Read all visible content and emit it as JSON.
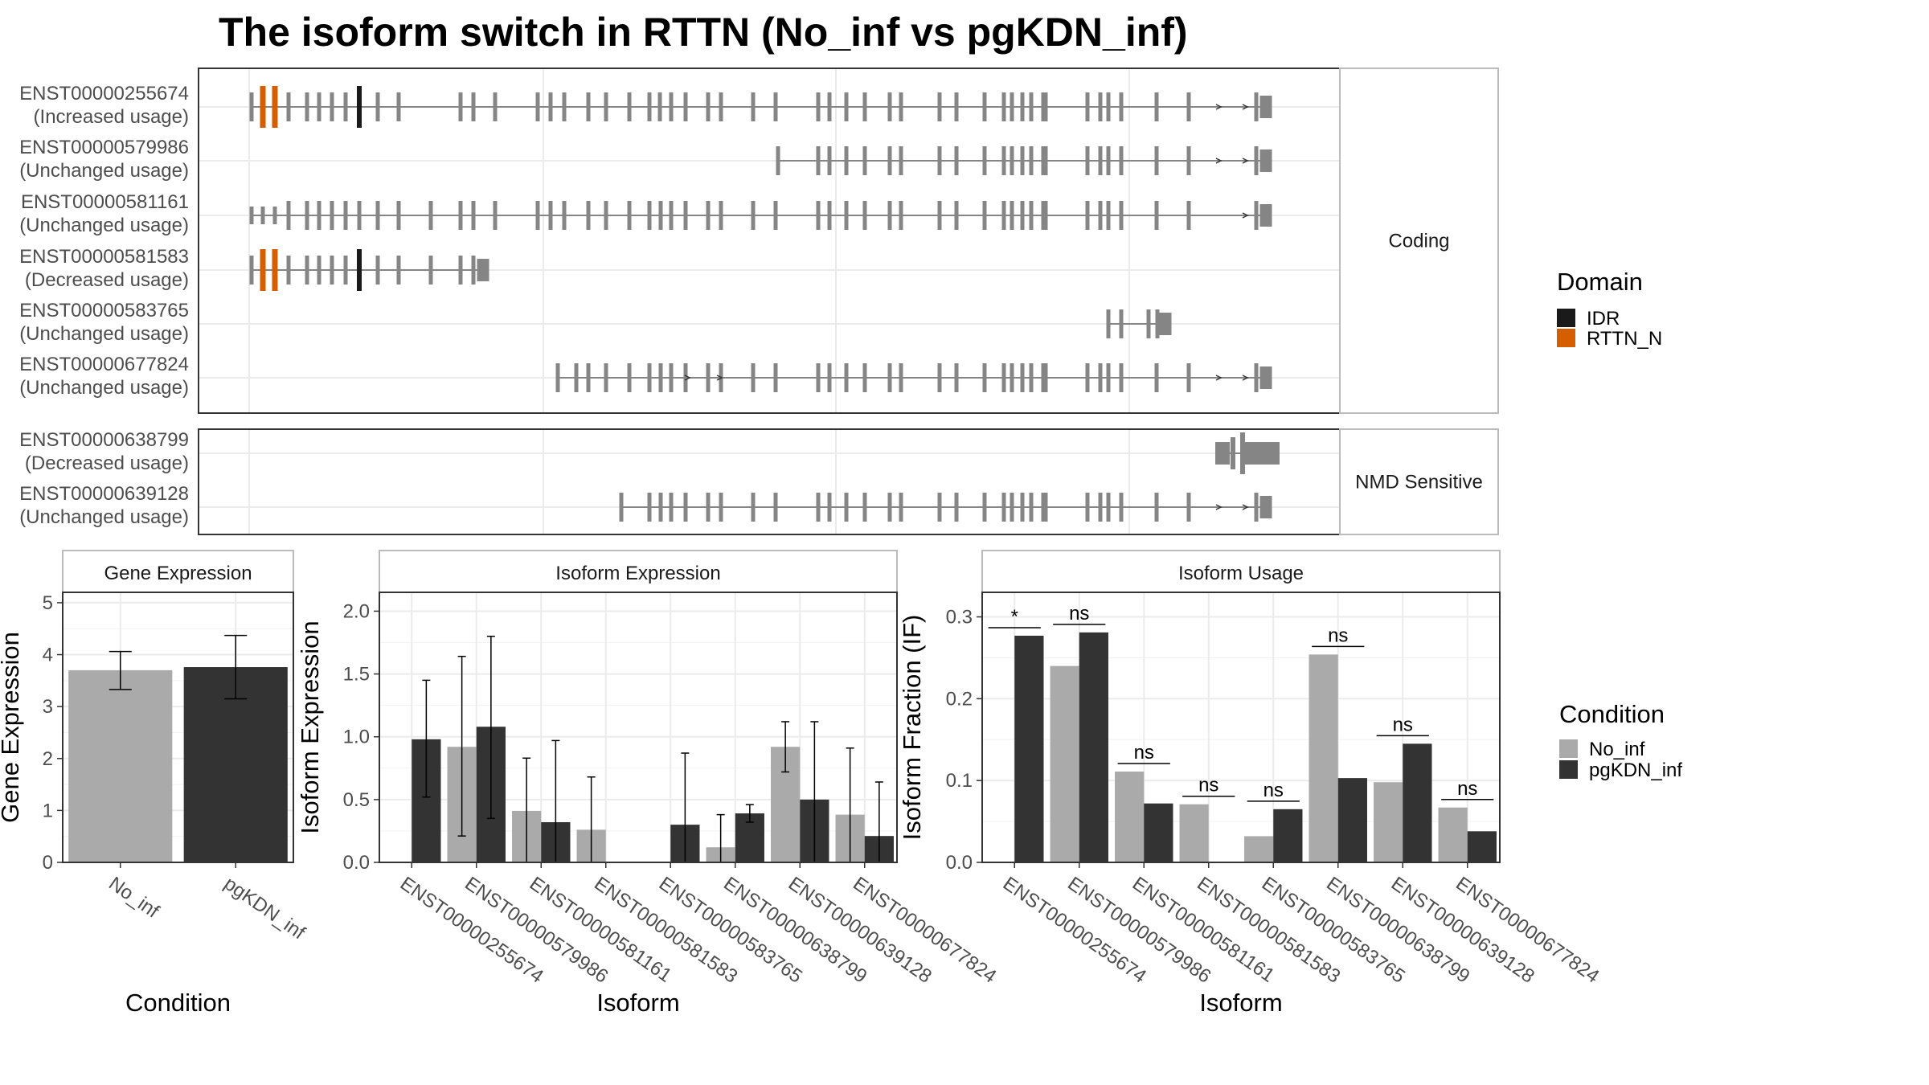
{
  "chart_data": [
    {
      "type": "isoform-structure",
      "title": "The isoform switch in RTTN (No_inf vs pgKDN_inf)",
      "groups": [
        {
          "label": "Coding",
          "transcripts": [
            {
              "id": "ENST00000255674",
              "usage": "(Increased usage)"
            },
            {
              "id": "ENST00000579986",
              "usage": "(Unchanged usage)"
            },
            {
              "id": "ENST00000581161",
              "usage": "(Unchanged usage)"
            },
            {
              "id": "ENST00000581583",
              "usage": "(Decreased usage)"
            },
            {
              "id": "ENST00000583765",
              "usage": "(Unchanged usage)"
            },
            {
              "id": "ENST00000677824",
              "usage": "(Unchanged usage)"
            }
          ]
        },
        {
          "label": "NMD Sensitive",
          "transcripts": [
            {
              "id": "ENST00000638799",
              "usage": "(Decreased usage)"
            },
            {
              "id": "ENST00000639128",
              "usage": "(Unchanged usage)"
            }
          ]
        }
      ],
      "legend": {
        "title": "Domain",
        "placement": "right",
        "items": [
          {
            "name": "IDR",
            "color": "#1a1a1a"
          },
          {
            "name": "RTTN_N",
            "color": "#d55e00"
          }
        ]
      }
    },
    {
      "type": "bar",
      "panel_title": "Gene Expression",
      "xlabel": "Condition",
      "ylabel": "Gene Expression",
      "ylim": [
        0,
        5.2
      ],
      "yticks": [
        0,
        1,
        2,
        3,
        4,
        5
      ],
      "categories": [
        "No_inf",
        "pgKDN_inf"
      ],
      "values": [
        3.7,
        3.76
      ],
      "errors": [
        [
          3.33,
          4.06
        ],
        [
          3.15,
          4.37
        ]
      ],
      "colors": [
        "#aaaaaa",
        "#333333"
      ]
    },
    {
      "type": "bar",
      "panel_title": "Isoform Expression",
      "xlabel": "Isoform",
      "ylabel": "Isoform Expression",
      "ylim": [
        0,
        2.15
      ],
      "yticks": [
        0.0,
        0.5,
        1.0,
        1.5,
        2.0
      ],
      "categories": [
        "ENST00000255674",
        "ENST00000579986",
        "ENST00000581161",
        "ENST00000581583",
        "ENST00000583765",
        "ENST00000638799",
        "ENST00000639128",
        "ENST00000677824"
      ],
      "series": [
        {
          "name": "No_inf",
          "color": "#aaaaaa",
          "values": [
            0.0,
            0.92,
            0.41,
            0.26,
            0.0,
            0.12,
            0.92,
            0.38
          ],
          "errors": [
            null,
            [
              0.21,
              1.64
            ],
            [
              0.0,
              0.83
            ],
            [
              0.0,
              0.68
            ],
            null,
            [
              0.0,
              0.38
            ],
            [
              0.72,
              1.12
            ],
            [
              0.0,
              0.91
            ]
          ]
        },
        {
          "name": "pgKDN_inf",
          "color": "#333333",
          "values": [
            0.98,
            1.08,
            0.32,
            0.0,
            0.3,
            0.39,
            0.5,
            0.21
          ],
          "errors": [
            [
              0.52,
              1.45
            ],
            [
              0.35,
              1.8
            ],
            [
              0.0,
              0.97
            ],
            null,
            [
              0.0,
              0.87
            ],
            [
              0.32,
              0.46
            ],
            [
              0.0,
              1.12
            ],
            [
              0.0,
              0.64
            ]
          ]
        }
      ]
    },
    {
      "type": "bar",
      "panel_title": "Isoform Usage",
      "xlabel": "Isoform",
      "ylabel": "Isoform Fraction (IF)",
      "ylim": [
        0,
        0.33
      ],
      "yticks": [
        0.0,
        0.1,
        0.2,
        0.3
      ],
      "categories": [
        "ENST00000255674",
        "ENST00000579986",
        "ENST00000581161",
        "ENST00000581583",
        "ENST00000583765",
        "ENST00000638799",
        "ENST00000639128",
        "ENST00000677824"
      ],
      "series": [
        {
          "name": "No_inf",
          "color": "#aaaaaa",
          "values": [
            0.0,
            0.24,
            0.111,
            0.071,
            0.032,
            0.254,
            0.098,
            0.067
          ]
        },
        {
          "name": "pgKDN_inf",
          "color": "#333333",
          "values": [
            0.277,
            0.281,
            0.072,
            0.0,
            0.065,
            0.103,
            0.145,
            0.038
          ]
        }
      ],
      "significance": [
        "*",
        "ns",
        "ns",
        "ns",
        "ns",
        "ns",
        "ns",
        "ns"
      ],
      "legend": {
        "title": "Condition",
        "placement": "right",
        "items": [
          {
            "name": "No_inf",
            "color": "#aaaaaa"
          },
          {
            "name": "pgKDN_inf",
            "color": "#333333"
          }
        ]
      }
    }
  ]
}
